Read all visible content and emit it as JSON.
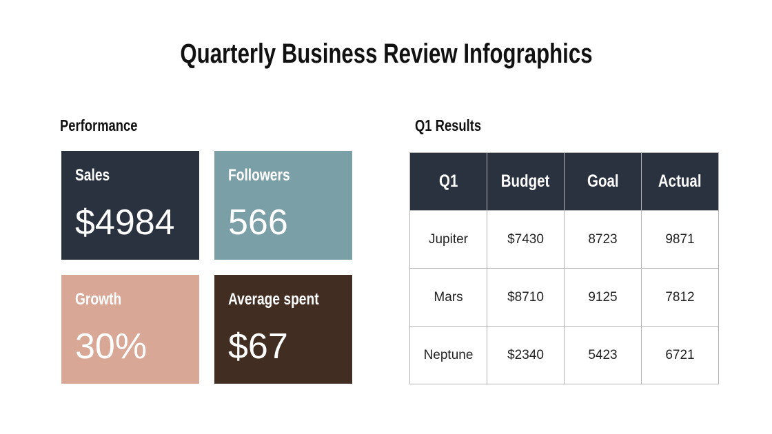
{
  "title": "Quarterly Business Review Infographics",
  "performance": {
    "heading": "Performance",
    "cards": [
      {
        "label": "Sales",
        "value": "$4984",
        "color": "#2a3240"
      },
      {
        "label": "Followers",
        "value": "566",
        "color": "#7b9fa6"
      },
      {
        "label": "Growth",
        "value": "30%",
        "color": "#d8a795"
      },
      {
        "label": "Average spent",
        "value": "$67",
        "color": "#422d22"
      }
    ]
  },
  "results": {
    "heading": "Q1 Results",
    "columns": [
      "Q1",
      "Budget",
      "Goal",
      "Actual"
    ],
    "rows": [
      [
        "Jupiter",
        "$7430",
        "8723",
        "9871"
      ],
      [
        "Mars",
        "$8710",
        "9125",
        "7812"
      ],
      [
        "Neptune",
        "$2340",
        "5423",
        "6721"
      ]
    ],
    "header_color": "#2a3240"
  }
}
